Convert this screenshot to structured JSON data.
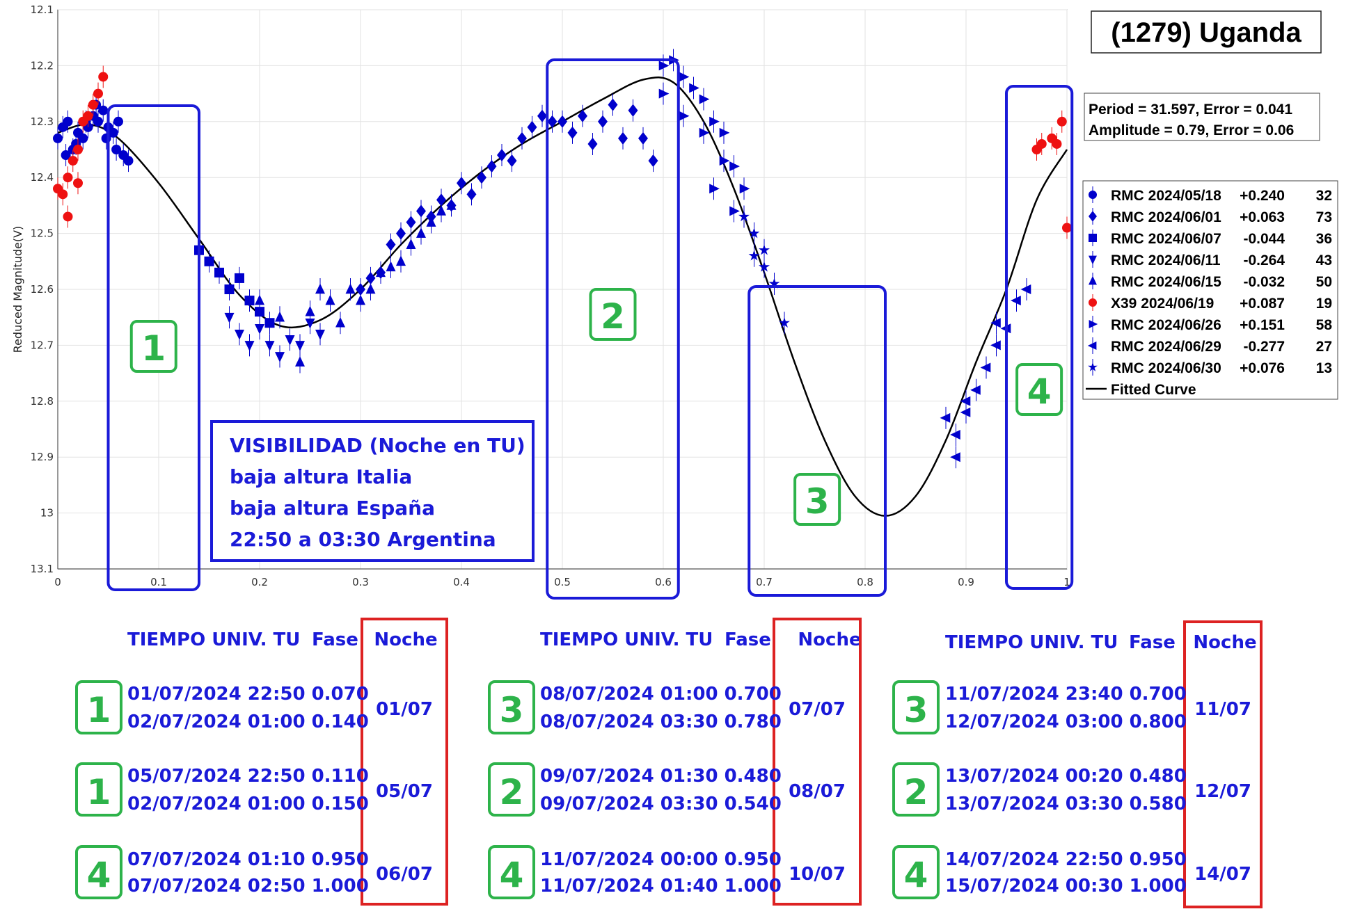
{
  "chart_data": {
    "type": "scatter",
    "title": "(1279) Uganda",
    "ylabel": "Reduced Magnitude(V)",
    "xlabel": "",
    "xlim": [
      0,
      1
    ],
    "ylim": [
      12.1,
      13.1
    ],
    "y_inverted": true,
    "x_ticks": [
      "0",
      "0.1",
      "0.2",
      "0.3",
      "0.4",
      "0.5",
      "0.6",
      "0.7",
      "0.8",
      "0.9",
      "1"
    ],
    "y_ticks": [
      "12.1",
      "12.2",
      "12.3",
      "12.4",
      "12.5",
      "12.6",
      "12.7",
      "12.8",
      "12.9",
      "13",
      "13.1"
    ],
    "grid": true,
    "legend_position": "right",
    "period_text": "Period =  31.597, Error = 0.041",
    "amplitude_text": "Amplitude = 0.79, Error = 0.06",
    "fitted_curve": {
      "name": "Fitted Curve",
      "color": "#000000",
      "points": [
        [
          0,
          12.32
        ],
        [
          0.03,
          12.305
        ],
        [
          0.06,
          12.33
        ],
        [
          0.1,
          12.41
        ],
        [
          0.14,
          12.51
        ],
        [
          0.18,
          12.61
        ],
        [
          0.22,
          12.665
        ],
        [
          0.26,
          12.655
        ],
        [
          0.3,
          12.6
        ],
        [
          0.34,
          12.52
        ],
        [
          0.38,
          12.45
        ],
        [
          0.42,
          12.39
        ],
        [
          0.46,
          12.34
        ],
        [
          0.5,
          12.3
        ],
        [
          0.54,
          12.26
        ],
        [
          0.58,
          12.225
        ],
        [
          0.61,
          12.23
        ],
        [
          0.64,
          12.3
        ],
        [
          0.67,
          12.42
        ],
        [
          0.7,
          12.57
        ],
        [
          0.73,
          12.73
        ],
        [
          0.76,
          12.87
        ],
        [
          0.79,
          12.97
        ],
        [
          0.82,
          13.005
        ],
        [
          0.85,
          12.97
        ],
        [
          0.88,
          12.87
        ],
        [
          0.91,
          12.73
        ],
        [
          0.94,
          12.6
        ],
        [
          0.97,
          12.44
        ],
        [
          1.0,
          12.35
        ]
      ]
    },
    "series": [
      {
        "name": "RMC 2024/05/18",
        "offset": "+0.240",
        "count": "32",
        "marker": "circle",
        "color": "#0000cc",
        "points": [
          [
            0.0,
            12.33
          ],
          [
            0.005,
            12.31
          ],
          [
            0.01,
            12.3
          ],
          [
            0.015,
            12.35
          ],
          [
            0.02,
            12.32
          ],
          [
            0.025,
            12.33
          ],
          [
            0.03,
            12.31
          ],
          [
            0.035,
            12.29
          ],
          [
            0.04,
            12.3
          ],
          [
            0.045,
            12.28
          ],
          [
            0.05,
            12.31
          ],
          [
            0.055,
            12.32
          ],
          [
            0.06,
            12.3
          ],
          [
            0.065,
            12.36
          ],
          [
            0.07,
            12.37
          ],
          [
            0.008,
            12.36
          ],
          [
            0.018,
            12.34
          ],
          [
            0.028,
            12.3
          ],
          [
            0.038,
            12.27
          ],
          [
            0.048,
            12.33
          ],
          [
            0.058,
            12.35
          ]
        ]
      },
      {
        "name": "RMC 2024/06/01",
        "offset": "+0.063",
        "count": "73",
        "marker": "diamond",
        "color": "#0000cc",
        "points": [
          [
            0.3,
            12.6
          ],
          [
            0.31,
            12.58
          ],
          [
            0.32,
            12.57
          ],
          [
            0.33,
            12.52
          ],
          [
            0.34,
            12.5
          ],
          [
            0.35,
            12.48
          ],
          [
            0.36,
            12.46
          ],
          [
            0.37,
            12.47
          ],
          [
            0.38,
            12.44
          ],
          [
            0.39,
            12.45
          ],
          [
            0.4,
            12.41
          ],
          [
            0.41,
            12.43
          ],
          [
            0.42,
            12.4
          ],
          [
            0.43,
            12.38
          ],
          [
            0.44,
            12.36
          ],
          [
            0.45,
            12.37
          ],
          [
            0.46,
            12.33
          ],
          [
            0.47,
            12.31
          ],
          [
            0.48,
            12.29
          ],
          [
            0.49,
            12.3
          ],
          [
            0.5,
            12.3
          ],
          [
            0.51,
            12.32
          ],
          [
            0.52,
            12.29
          ],
          [
            0.53,
            12.34
          ],
          [
            0.54,
            12.3
          ],
          [
            0.55,
            12.27
          ],
          [
            0.56,
            12.33
          ],
          [
            0.57,
            12.28
          ],
          [
            0.58,
            12.33
          ],
          [
            0.59,
            12.37
          ]
        ]
      },
      {
        "name": "RMC 2024/06/07",
        "offset": "-0.044",
        "count": "36",
        "marker": "square",
        "color": "#0000cc",
        "points": [
          [
            0.14,
            12.53
          ],
          [
            0.15,
            12.55
          ],
          [
            0.16,
            12.57
          ],
          [
            0.17,
            12.6
          ],
          [
            0.18,
            12.58
          ],
          [
            0.19,
            12.62
          ],
          [
            0.2,
            12.64
          ],
          [
            0.21,
            12.66
          ]
        ]
      },
      {
        "name": "RMC 2024/06/11",
        "offset": "-0.264",
        "count": "43",
        "marker": "triangle-down",
        "color": "#0000cc",
        "points": [
          [
            0.17,
            12.65
          ],
          [
            0.18,
            12.68
          ],
          [
            0.19,
            12.7
          ],
          [
            0.2,
            12.67
          ],
          [
            0.21,
            12.7
          ],
          [
            0.22,
            12.72
          ],
          [
            0.23,
            12.69
          ],
          [
            0.24,
            12.7
          ],
          [
            0.25,
            12.66
          ],
          [
            0.26,
            12.68
          ]
        ]
      },
      {
        "name": "RMC 2024/06/15",
        "offset": "-0.032",
        "count": "50",
        "marker": "triangle-up",
        "color": "#0000cc",
        "points": [
          [
            0.2,
            12.62
          ],
          [
            0.22,
            12.65
          ],
          [
            0.24,
            12.73
          ],
          [
            0.25,
            12.64
          ],
          [
            0.26,
            12.6
          ],
          [
            0.27,
            12.62
          ],
          [
            0.28,
            12.66
          ],
          [
            0.29,
            12.6
          ],
          [
            0.3,
            12.62
          ],
          [
            0.31,
            12.6
          ],
          [
            0.32,
            12.57
          ],
          [
            0.33,
            12.56
          ],
          [
            0.34,
            12.55
          ],
          [
            0.35,
            12.52
          ],
          [
            0.36,
            12.5
          ],
          [
            0.37,
            12.48
          ],
          [
            0.38,
            12.46
          ],
          [
            0.39,
            12.45
          ]
        ]
      },
      {
        "name": "X39 2024/06/19",
        "offset": "+0.087",
        "count": "19",
        "marker": "circle",
        "color": "#ee1111",
        "points": [
          [
            0.0,
            12.42
          ],
          [
            0.005,
            12.43
          ],
          [
            0.01,
            12.4
          ],
          [
            0.015,
            12.37
          ],
          [
            0.02,
            12.35
          ],
          [
            0.025,
            12.3
          ],
          [
            0.03,
            12.29
          ],
          [
            0.035,
            12.27
          ],
          [
            0.04,
            12.25
          ],
          [
            0.045,
            12.22
          ],
          [
            0.01,
            12.47
          ],
          [
            0.02,
            12.41
          ],
          [
            0.97,
            12.35
          ],
          [
            0.975,
            12.34
          ],
          [
            0.985,
            12.33
          ],
          [
            0.99,
            12.34
          ],
          [
            0.995,
            12.3
          ],
          [
            1.0,
            12.49
          ]
        ]
      },
      {
        "name": "RMC 2024/06/26",
        "offset": "+0.151",
        "count": "58",
        "marker": "triangle-right",
        "color": "#0000cc",
        "points": [
          [
            0.6,
            12.2
          ],
          [
            0.61,
            12.19
          ],
          [
            0.62,
            12.22
          ],
          [
            0.63,
            12.24
          ],
          [
            0.64,
            12.26
          ],
          [
            0.65,
            12.3
          ],
          [
            0.66,
            12.32
          ],
          [
            0.67,
            12.38
          ],
          [
            0.68,
            12.42
          ],
          [
            0.6,
            12.25
          ],
          [
            0.62,
            12.29
          ],
          [
            0.64,
            12.32
          ],
          [
            0.66,
            12.37
          ],
          [
            0.67,
            12.46
          ],
          [
            0.65,
            12.42
          ]
        ]
      },
      {
        "name": "RMC 2024/06/29",
        "offset": "-0.277",
        "count": "27",
        "marker": "triangle-left",
        "color": "#0000cc",
        "points": [
          [
            0.88,
            12.83
          ],
          [
            0.89,
            12.86
          ],
          [
            0.9,
            12.82
          ],
          [
            0.91,
            12.78
          ],
          [
            0.92,
            12.74
          ],
          [
            0.93,
            12.7
          ],
          [
            0.94,
            12.67
          ],
          [
            0.95,
            12.62
          ],
          [
            0.96,
            12.6
          ],
          [
            0.89,
            12.9
          ],
          [
            0.9,
            12.8
          ],
          [
            0.93,
            12.66
          ]
        ]
      },
      {
        "name": "RMC 2024/06/30",
        "offset": "+0.076",
        "count": "13",
        "marker": "star",
        "color": "#0000cc",
        "points": [
          [
            0.68,
            12.47
          ],
          [
            0.69,
            12.5
          ],
          [
            0.7,
            12.53
          ],
          [
            0.71,
            12.59
          ],
          [
            0.72,
            12.66
          ],
          [
            0.7,
            12.56
          ],
          [
            0.69,
            12.54
          ]
        ]
      }
    ]
  },
  "legend": {
    "fitted_label": "Fitted Curve"
  },
  "visibility": {
    "lines": [
      "VISIBILIDAD (Noche en TU)",
      "baja altura Italia",
      "baja altura España",
      "22:50 a 03:30 Argentina"
    ]
  },
  "phase_boxes": [
    {
      "label": "1",
      "x0": 0.05,
      "x1": 0.14
    },
    {
      "label": "2",
      "x0": 0.485,
      "x1": 0.615
    },
    {
      "label": "3",
      "x0": 0.685,
      "x1": 0.82
    },
    {
      "label": "4",
      "x0": 0.94,
      "x1": 1.005
    }
  ],
  "tables": [
    {
      "headers": {
        "tiempo": "TIEMPO UNIV. TU",
        "fase": "Fase",
        "noche": "Noche"
      },
      "groups": [
        {
          "num": "1",
          "rows": [
            "01/07/2024  22:50 0.070",
            "02/07/2024  01:00 0.140"
          ],
          "noche": "01/07"
        },
        {
          "num": "1",
          "rows": [
            "05/07/2024  22:50 0.110",
            "02/07/2024  01:00 0.150"
          ],
          "noche": "05/07"
        },
        {
          "num": "4",
          "rows": [
            "07/07/2024  01:10 0.950",
            "07/07/2024  02:50 1.000"
          ],
          "noche": "06/07"
        }
      ]
    },
    {
      "headers": {
        "tiempo": "TIEMPO UNIV. TU",
        "fase": "Fase",
        "noche": "Noche"
      },
      "groups": [
        {
          "num": "3",
          "rows": [
            "08/07/2024  01:00 0.700",
            "08/07/2024  03:30 0.780"
          ],
          "noche": "07/07"
        },
        {
          "num": "2",
          "rows": [
            "09/07/2024  01:30 0.480",
            "09/07/2024  03:30 0.540"
          ],
          "noche": "08/07"
        },
        {
          "num": "4",
          "rows": [
            "11/07/2024  00:00 0.950",
            "11/07/2024  01:40 1.000"
          ],
          "noche": "10/07"
        }
      ]
    },
    {
      "headers": {
        "tiempo": "TIEMPO UNIV. TU",
        "fase": "Fase",
        "noche": "Noche"
      },
      "groups": [
        {
          "num": "3",
          "rows": [
            "11/07/2024  23:40 0.700",
            "12/07/2024  03:00 0.800"
          ],
          "noche": "11/07"
        },
        {
          "num": "2",
          "rows": [
            "13/07/2024  00:20 0.480",
            "13/07/2024  03:30 0.580"
          ],
          "noche": "12/07"
        },
        {
          "num": "4",
          "rows": [
            "14/07/2024  22:50 0.950",
            "15/07/2024  00:30 1.000"
          ],
          "noche": "14/07"
        }
      ]
    }
  ],
  "colors": {
    "box_blue": "#1a1ad8",
    "number_green": "#2db34a",
    "noche_red": "#dd2222"
  }
}
